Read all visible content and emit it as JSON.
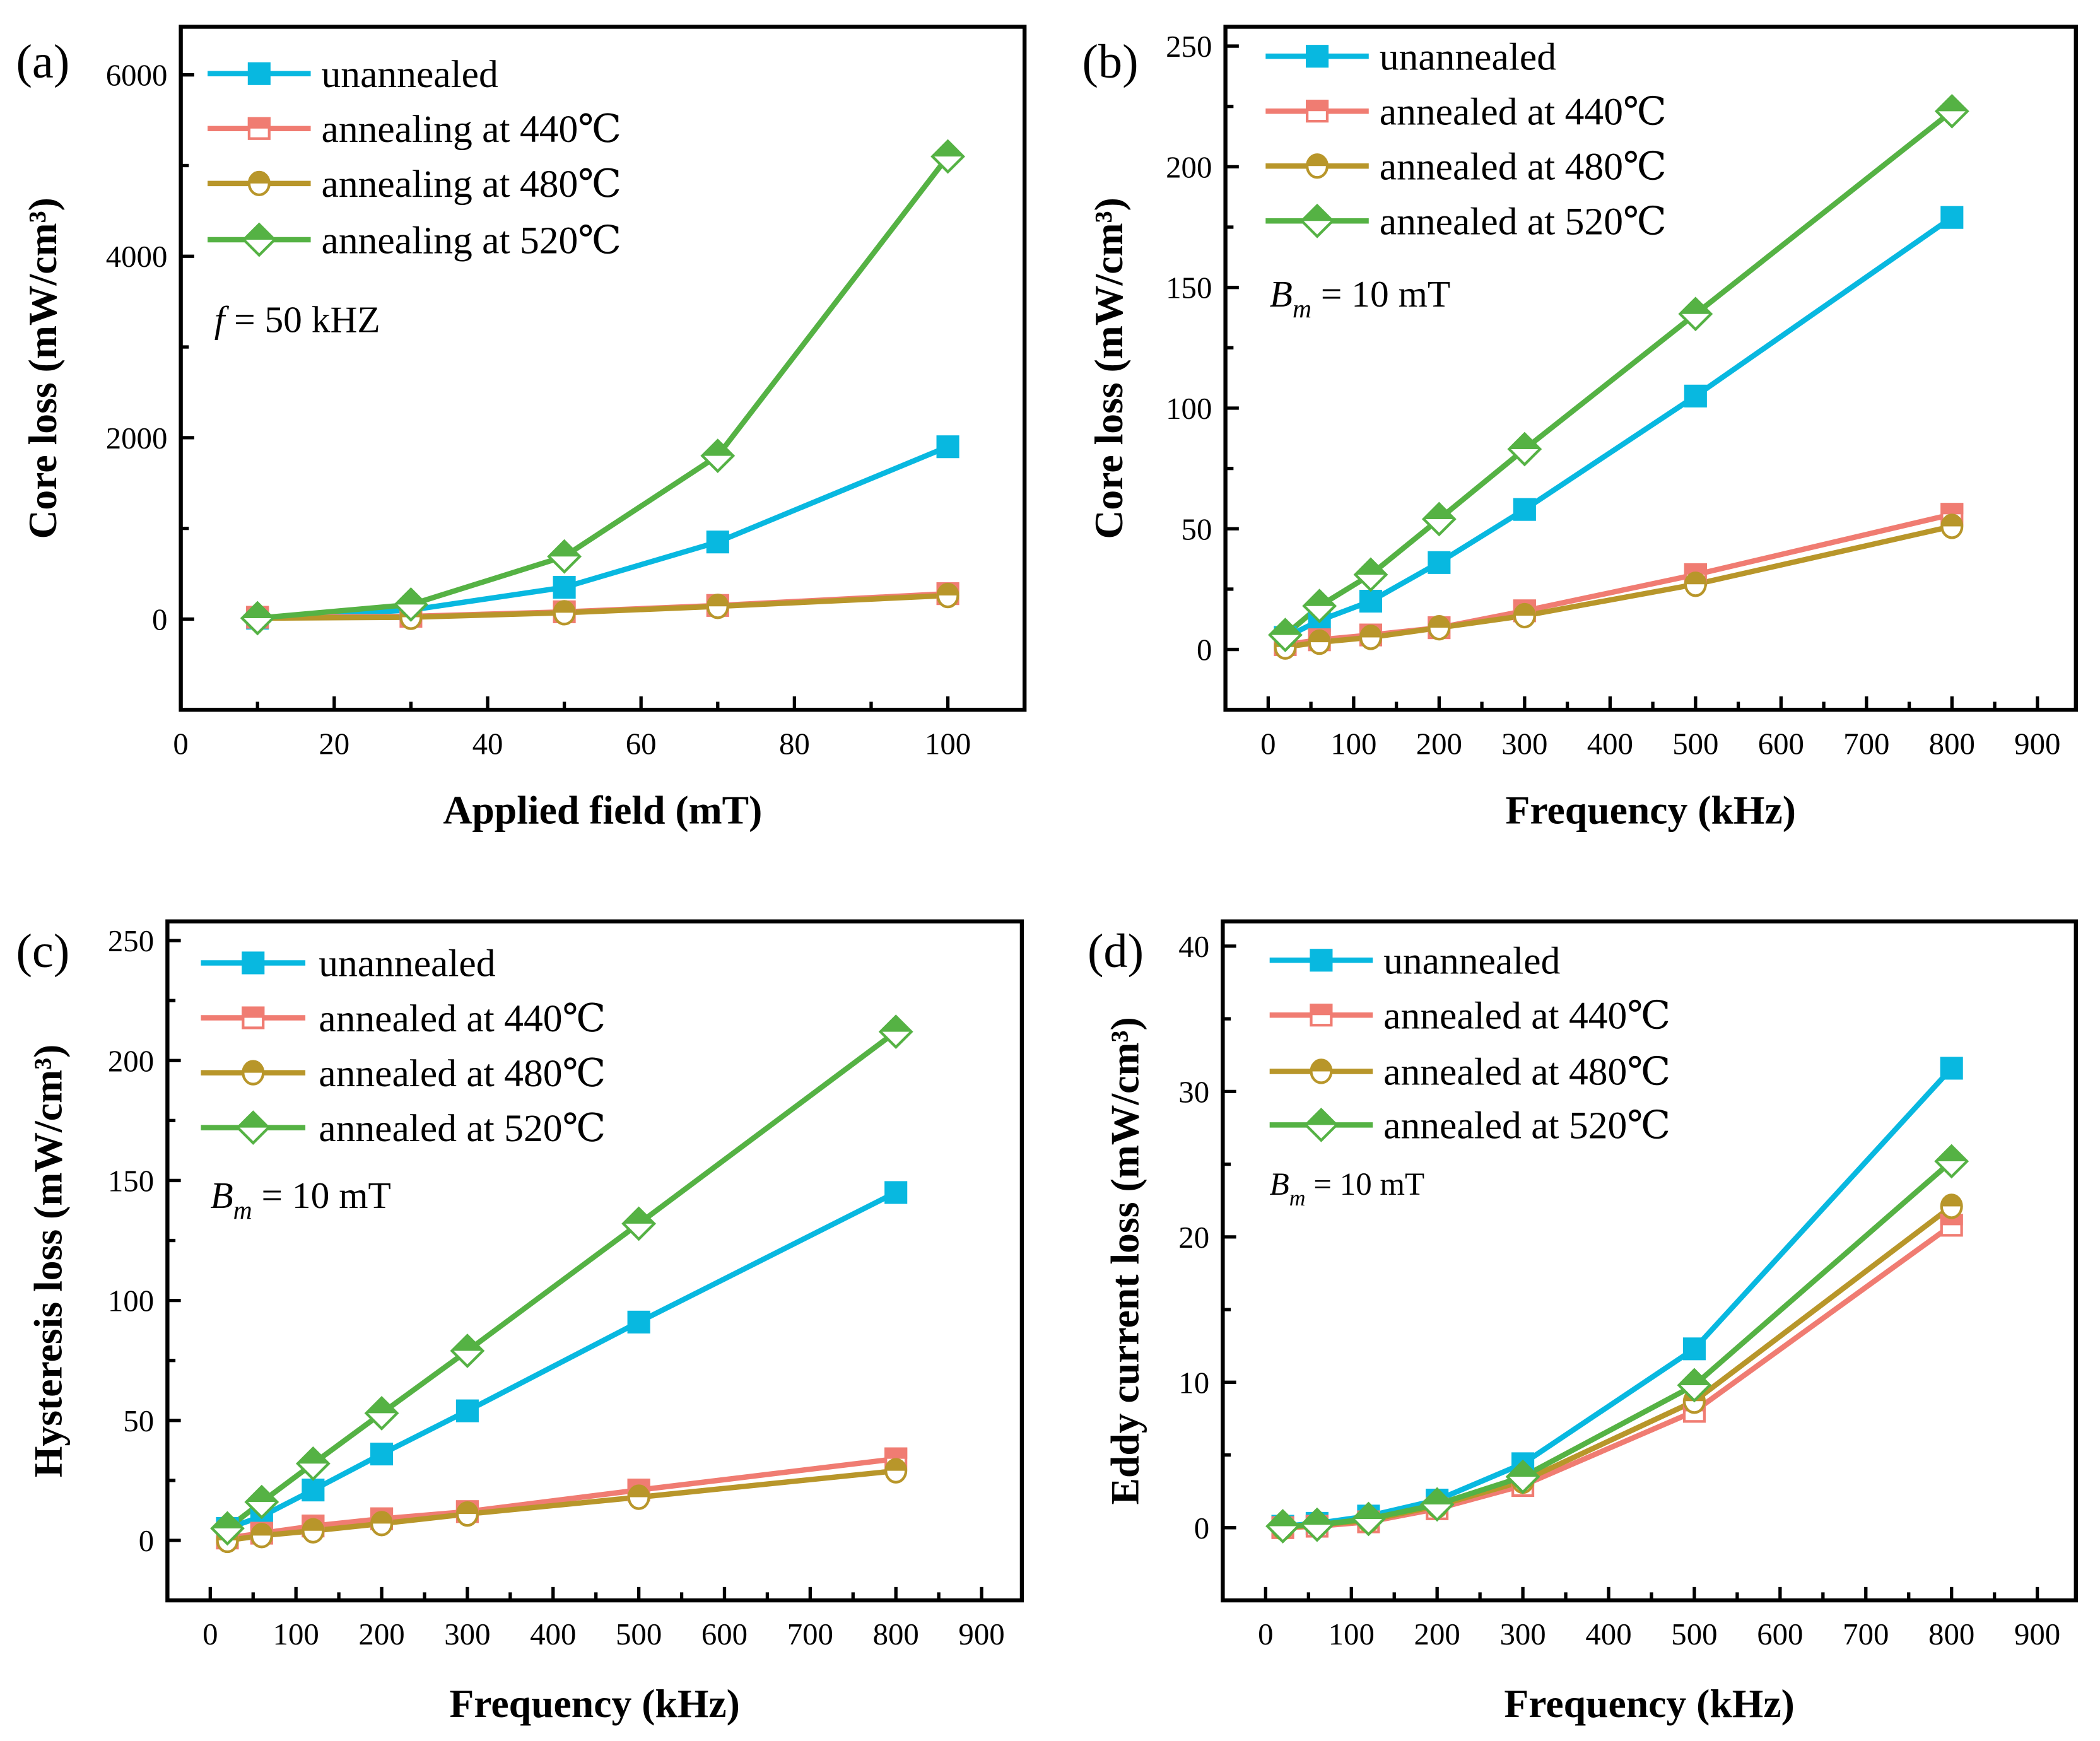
{
  "colors": {
    "unannealed": "#08B8E0",
    "a440": "#F07C72",
    "a480": "#B8962A",
    "a520": "#55B244"
  },
  "chart_data": [
    {
      "panel_label": "(a)",
      "type": "line",
      "xlabel": "Applied field (mT)",
      "ylabel": "Core loss (mW/cm³)",
      "annotation": {
        "var": "f",
        "sub": "",
        "rest": " = 50 kHZ"
      },
      "x": [
        10,
        30,
        50,
        70,
        100
      ],
      "xlim": [
        0,
        110
      ],
      "ylim": [
        -1000,
        6530
      ],
      "xticks": [
        0,
        20,
        40,
        60,
        80,
        100
      ],
      "xminor": 10,
      "yticks": [
        0,
        2000,
        4000,
        6000
      ],
      "yminor": 1000,
      "legend_position": "top-left",
      "series": [
        {
          "name": "unannealed",
          "marker": "square",
          "color_key": "unannealed",
          "values": [
            10,
            100,
            350,
            850,
            1900
          ]
        },
        {
          "name": "annealing at 440℃",
          "marker": "half-square",
          "color_key": "a440",
          "values": [
            20,
            30,
            80,
            150,
            280
          ]
        },
        {
          "name": "annealing at 480℃",
          "marker": "half-circle",
          "color_key": "a480",
          "values": [
            10,
            20,
            70,
            140,
            260
          ]
        },
        {
          "name": "annealing at 520℃",
          "marker": "half-diamond",
          "color_key": "a520",
          "values": [
            10,
            160,
            690,
            1800,
            5100
          ]
        }
      ]
    },
    {
      "panel_label": "(b)",
      "type": "line",
      "xlabel": "Frequency (kHz)",
      "ylabel": "Core loss (mW/cm³)",
      "annotation": {
        "var": "B",
        "sub": "m",
        "rest": " = 10 mT"
      },
      "x": [
        20,
        60,
        120,
        200,
        300,
        500,
        800
      ],
      "xlim": [
        -50,
        945
      ],
      "ylim": [
        -25,
        258
      ],
      "xticks": [
        0,
        100,
        200,
        300,
        400,
        500,
        600,
        700,
        800,
        900
      ],
      "xminor": 50,
      "yticks": [
        0,
        50,
        100,
        150,
        200,
        250
      ],
      "yminor": 25,
      "legend_position": "top-left",
      "series": [
        {
          "name": "unannealed",
          "marker": "square",
          "color_key": "unannealed",
          "values": [
            5,
            12,
            20,
            36,
            58,
            105,
            179
          ]
        },
        {
          "name": "annealed at 440℃",
          "marker": "half-square",
          "color_key": "a440",
          "values": [
            2,
            4,
            6,
            9,
            16,
            31,
            56
          ]
        },
        {
          "name": "annealed at 480℃",
          "marker": "half-circle",
          "color_key": "a480",
          "values": [
            1,
            3,
            5,
            9,
            14,
            27,
            51
          ]
        },
        {
          "name": "annealed at 520℃",
          "marker": "half-diamond",
          "color_key": "a520",
          "values": [
            6,
            18,
            31,
            54,
            83,
            139,
            223
          ]
        }
      ]
    },
    {
      "panel_label": "(c)",
      "type": "line",
      "xlabel": "Frequency (kHz)",
      "ylabel": "Hysteresis loss (mW/cm³)",
      "annotation": {
        "var": "B",
        "sub": "m",
        "rest": " = 10 mT"
      },
      "x": [
        20,
        60,
        120,
        200,
        300,
        500,
        800
      ],
      "xlim": [
        -50,
        947
      ],
      "ylim": [
        -25,
        258
      ],
      "xticks": [
        0,
        100,
        200,
        300,
        400,
        500,
        600,
        700,
        800,
        900
      ],
      "xminor": 50,
      "yticks": [
        0,
        50,
        100,
        150,
        200,
        250
      ],
      "yminor": 25,
      "legend_position": "top-left",
      "series": [
        {
          "name": "unannealed",
          "marker": "square",
          "color_key": "unannealed",
          "values": [
            5,
            10,
            21,
            36,
            54,
            91,
            145
          ]
        },
        {
          "name": "annealed at 440℃",
          "marker": "half-square",
          "color_key": "a440",
          "values": [
            1,
            3,
            6,
            9,
            12,
            21,
            34
          ]
        },
        {
          "name": "annealed at 480℃",
          "marker": "half-circle",
          "color_key": "a480",
          "values": [
            0,
            2,
            4,
            7,
            11,
            18,
            29
          ]
        },
        {
          "name": "annealed at 520℃",
          "marker": "half-diamond",
          "color_key": "a520",
          "values": [
            5,
            16,
            32,
            53,
            79,
            132,
            212
          ]
        }
      ]
    },
    {
      "panel_label": "(d)",
      "type": "line",
      "xlabel": "Frequency (kHz)",
      "ylabel": "Eddy current loss (mW/cm³)",
      "annotation": {
        "var": "B",
        "sub": "m",
        "rest": " = 10 mT"
      },
      "x": [
        20,
        60,
        120,
        200,
        300,
        500,
        800
      ],
      "xlim": [
        -50,
        945
      ],
      "ylim": [
        -5,
        41.7
      ],
      "xticks": [
        0,
        100,
        200,
        300,
        400,
        500,
        600,
        700,
        800,
        900
      ],
      "xminor": 50,
      "yticks": [
        0,
        10,
        20,
        30,
        40
      ],
      "yminor": 5,
      "legend_position": "top-left",
      "series": [
        {
          "name": "unannealed",
          "marker": "square",
          "color_key": "unannealed",
          "values": [
            0.1,
            0.3,
            0.8,
            1.9,
            4.4,
            12.3,
            31.6
          ]
        },
        {
          "name": "annealed at 440℃",
          "marker": "half-square",
          "color_key": "a440",
          "values": [
            0,
            0.1,
            0.4,
            1.3,
            2.9,
            8.0,
            20.8
          ]
        },
        {
          "name": "annealed at 480℃",
          "marker": "half-circle",
          "color_key": "a480",
          "values": [
            0,
            0.2,
            0.5,
            1.5,
            3.2,
            8.7,
            22.1
          ]
        },
        {
          "name": "annealed at 520℃",
          "marker": "half-diamond",
          "color_key": "a520",
          "values": [
            0.1,
            0.2,
            0.6,
            1.6,
            3.5,
            9.8,
            25.2
          ]
        }
      ]
    }
  ]
}
